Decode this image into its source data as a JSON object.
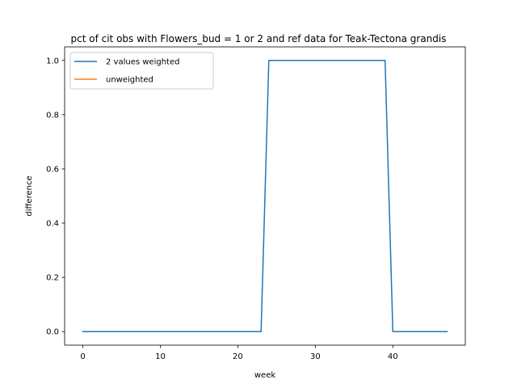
{
  "chart_data": {
    "type": "line",
    "title": "pct of cit obs with Flowers_bud = 1 or 2 and ref data for Teak-Tectona grandis",
    "xlabel": "week",
    "ylabel": "difference",
    "xlim": [
      -2.35,
      49.35
    ],
    "ylim": [
      -0.05,
      1.05
    ],
    "xticks": [
      0,
      10,
      20,
      30,
      40
    ],
    "yticks": [
      0.0,
      0.2,
      0.4,
      0.6,
      0.8,
      1.0
    ],
    "xtick_labels": [
      "0",
      "10",
      "20",
      "30",
      "40"
    ],
    "ytick_labels": [
      "0.0",
      "0.2",
      "0.4",
      "0.6",
      "0.8",
      "1.0"
    ],
    "grid": false,
    "legend_position": "top-left",
    "series": [
      {
        "name": "2 values weighted",
        "color": "#1f77b4",
        "x": [
          0,
          1,
          2,
          3,
          4,
          5,
          6,
          7,
          8,
          9,
          10,
          11,
          12,
          13,
          14,
          15,
          16,
          17,
          18,
          19,
          20,
          21,
          22,
          23,
          24,
          25,
          26,
          27,
          28,
          29,
          30,
          31,
          32,
          33,
          34,
          35,
          36,
          37,
          38,
          39,
          40,
          41,
          42,
          43,
          44,
          45,
          46,
          47
        ],
        "values": [
          0,
          0,
          0,
          0,
          0,
          0,
          0,
          0,
          0,
          0,
          0,
          0,
          0,
          0,
          0,
          0,
          0,
          0,
          0,
          0,
          0,
          0,
          0,
          0,
          1,
          1,
          1,
          1,
          1,
          1,
          1,
          1,
          1,
          1,
          1,
          1,
          1,
          1,
          1,
          1,
          0,
          0,
          0,
          0,
          0,
          0,
          0,
          0
        ]
      },
      {
        "name": "unweighted",
        "color": "#ff7f0e",
        "x": [],
        "values": []
      }
    ]
  }
}
